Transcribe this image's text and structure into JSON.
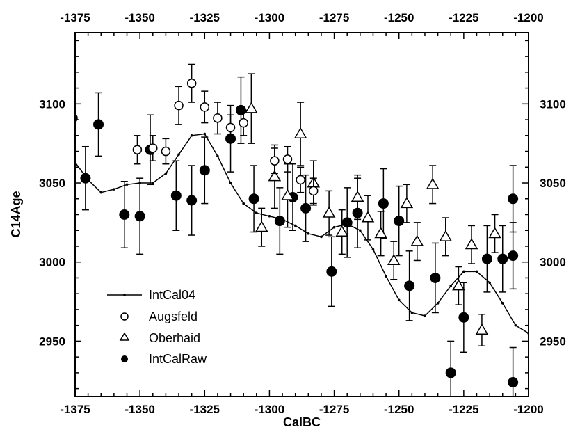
{
  "chart_data": {
    "type": "scatter",
    "xlabel": "CalBC",
    "ylabel": "C14Age",
    "xlim": [
      -1375,
      -1200
    ],
    "ylim": [
      2915,
      3145
    ],
    "x_ticks": [
      -1375,
      -1350,
      -1325,
      -1300,
      -1275,
      -1250,
      -1225,
      -1200
    ],
    "y_ticks": [
      2950,
      3000,
      3050,
      3100
    ],
    "top_axis_ticks": true,
    "right_axis_ticks": true,
    "grid": false,
    "legend_position": "bottom-left",
    "series": [
      {
        "name": "IntCal04",
        "style": "line-small-dots",
        "color": "#000000",
        "points": [
          [
            -1375,
            3063
          ],
          [
            -1370,
            3052
          ],
          [
            -1365,
            3044
          ],
          [
            -1360,
            3046
          ],
          [
            -1355,
            3049
          ],
          [
            -1350,
            3050
          ],
          [
            -1345,
            3050
          ],
          [
            -1340,
            3056
          ],
          [
            -1335,
            3068
          ],
          [
            -1330,
            3080
          ],
          [
            -1325,
            3081
          ],
          [
            -1320,
            3067
          ],
          [
            -1315,
            3050
          ],
          [
            -1310,
            3037
          ],
          [
            -1305,
            3031
          ],
          [
            -1300,
            3029
          ],
          [
            -1295,
            3027
          ],
          [
            -1290,
            3023
          ],
          [
            -1285,
            3018
          ],
          [
            -1280,
            3016
          ],
          [
            -1275,
            3022
          ],
          [
            -1270,
            3024
          ],
          [
            -1265,
            3020
          ],
          [
            -1260,
            3008
          ],
          [
            -1255,
            2991
          ],
          [
            -1250,
            2976
          ],
          [
            -1245,
            2968
          ],
          [
            -1240,
            2966
          ],
          [
            -1235,
            2974
          ],
          [
            -1230,
            2985
          ],
          [
            -1225,
            2994
          ],
          [
            -1220,
            2994
          ],
          [
            -1215,
            2987
          ],
          [
            -1210,
            2974
          ],
          [
            -1205,
            2960
          ],
          [
            -1200,
            2955
          ],
          [
            -1195,
            2958
          ]
        ]
      },
      {
        "name": "Augsfeld",
        "marker": "open-circle",
        "color": "#000000",
        "points": [
          {
            "x": -1351,
            "y": 3071,
            "err": 9
          },
          {
            "x": -1345,
            "y": 3072,
            "err": 8
          },
          {
            "x": -1340,
            "y": 3070,
            "err": 8
          },
          {
            "x": -1335,
            "y": 3099,
            "err": 12
          },
          {
            "x": -1330,
            "y": 3113,
            "err": 12
          },
          {
            "x": -1325,
            "y": 3098,
            "err": 10
          },
          {
            "x": -1320,
            "y": 3091,
            "err": 10
          },
          {
            "x": -1315,
            "y": 3085,
            "err": 8
          },
          {
            "x": -1310,
            "y": 3088,
            "err": 8
          },
          {
            "x": -1298,
            "y": 3064,
            "err": 8
          },
          {
            "x": -1293,
            "y": 3065,
            "err": 8
          },
          {
            "x": -1288,
            "y": 3052,
            "err": 8
          },
          {
            "x": -1283,
            "y": 3045,
            "err": 8
          }
        ]
      },
      {
        "name": "Oberhaid",
        "marker": "open-triangle",
        "color": "#000000",
        "points": [
          {
            "x": -1307,
            "y": 3097,
            "err": 22
          },
          {
            "x": -1303,
            "y": 3022,
            "err": 12
          },
          {
            "x": -1298,
            "y": 3054,
            "err": 20
          },
          {
            "x": -1293,
            "y": 3042,
            "err": 20
          },
          {
            "x": -1288,
            "y": 3081,
            "err": 20
          },
          {
            "x": -1283,
            "y": 3050,
            "err": 14
          },
          {
            "x": -1277,
            "y": 3031,
            "err": 14
          },
          {
            "x": -1272,
            "y": 3019,
            "err": 14
          },
          {
            "x": -1266,
            "y": 3041,
            "err": 14
          },
          {
            "x": -1262,
            "y": 3028,
            "err": 14
          },
          {
            "x": -1257,
            "y": 3018,
            "err": 14
          },
          {
            "x": -1252,
            "y": 3001,
            "err": 12
          },
          {
            "x": -1247,
            "y": 3037,
            "err": 12
          },
          {
            "x": -1243,
            "y": 3013,
            "err": 12
          },
          {
            "x": -1237,
            "y": 3049,
            "err": 12
          },
          {
            "x": -1232,
            "y": 3016,
            "err": 12
          },
          {
            "x": -1227,
            "y": 2985,
            "err": 12
          },
          {
            "x": -1222,
            "y": 3011,
            "err": 12
          },
          {
            "x": -1218,
            "y": 2957,
            "err": 10
          },
          {
            "x": -1213,
            "y": 3018,
            "err": 12
          }
        ]
      },
      {
        "name": "IntCalRaw",
        "marker": "filled-circle",
        "color": "#000000",
        "points": [
          {
            "x": -1376,
            "y": 3091,
            "err": 10
          },
          {
            "x": -1371,
            "y": 3053,
            "err": 20
          },
          {
            "x": -1366,
            "y": 3087,
            "err": 20
          },
          {
            "x": -1356,
            "y": 3030,
            "err": 21
          },
          {
            "x": -1350,
            "y": 3029,
            "err": 24
          },
          {
            "x": -1346,
            "y": 3071,
            "err": 22
          },
          {
            "x": -1336,
            "y": 3042,
            "err": 22
          },
          {
            "x": -1330,
            "y": 3039,
            "err": 22
          },
          {
            "x": -1325,
            "y": 3058,
            "err": 21
          },
          {
            "x": -1315,
            "y": 3078,
            "err": 21
          },
          {
            "x": -1311,
            "y": 3096,
            "err": 21
          },
          {
            "x": -1306,
            "y": 3040,
            "err": 21
          },
          {
            "x": -1296,
            "y": 3026,
            "err": 21
          },
          {
            "x": -1291,
            "y": 3041,
            "err": 21
          },
          {
            "x": -1286,
            "y": 3034,
            "err": 21
          },
          {
            "x": -1276,
            "y": 2994,
            "err": 22
          },
          {
            "x": -1270,
            "y": 3025,
            "err": 22
          },
          {
            "x": -1266,
            "y": 3031,
            "err": 22
          },
          {
            "x": -1256,
            "y": 3037,
            "err": 22
          },
          {
            "x": -1250,
            "y": 3026,
            "err": 22
          },
          {
            "x": -1246,
            "y": 2985,
            "err": 22
          },
          {
            "x": -1236,
            "y": 2990,
            "err": 22
          },
          {
            "x": -1230,
            "y": 2930,
            "err": 20
          },
          {
            "x": -1225,
            "y": 2965,
            "err": 22
          },
          {
            "x": -1216,
            "y": 3002,
            "err": 21
          },
          {
            "x": -1210,
            "y": 3002,
            "err": 21
          },
          {
            "x": -1206,
            "y": 3004,
            "err": 21
          },
          {
            "x": -1206,
            "y": 3040,
            "err": 21
          },
          {
            "x": -1206,
            "y": 2924,
            "err": 22
          }
        ]
      }
    ]
  }
}
